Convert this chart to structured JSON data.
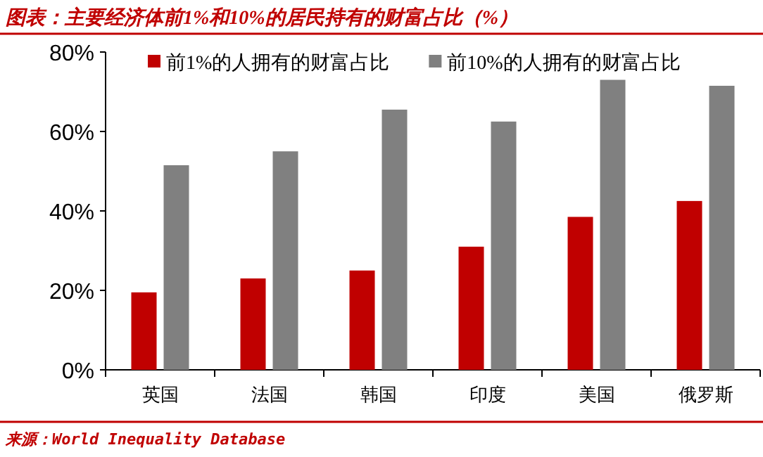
{
  "chart_data": {
    "type": "bar",
    "title": "图表：主要经济体前1%和10%的居民持有的财富占比（%）",
    "categories": [
      "英国",
      "法国",
      "韩国",
      "印度",
      "美国",
      "俄罗斯"
    ],
    "series": [
      {
        "name": "前1%的人拥有的财富占比",
        "color": "#c00000",
        "values": [
          19.5,
          23,
          25,
          31,
          38.5,
          42.5
        ]
      },
      {
        "name": "前10%的人拥有的财富占比",
        "color": "#808080",
        "values": [
          51.5,
          55,
          65.5,
          62.5,
          73,
          71.5
        ]
      }
    ],
    "ylim": [
      0,
      80
    ],
    "yticks": [
      {
        "value": 0,
        "label": "0%"
      },
      {
        "value": 20,
        "label": "20%"
      },
      {
        "value": 40,
        "label": "40%"
      },
      {
        "value": 60,
        "label": "60%"
      },
      {
        "value": 80,
        "label": "80%"
      }
    ],
    "legend": "top",
    "grid": false,
    "annotations": [
      "来源：World Inequality Database"
    ]
  }
}
